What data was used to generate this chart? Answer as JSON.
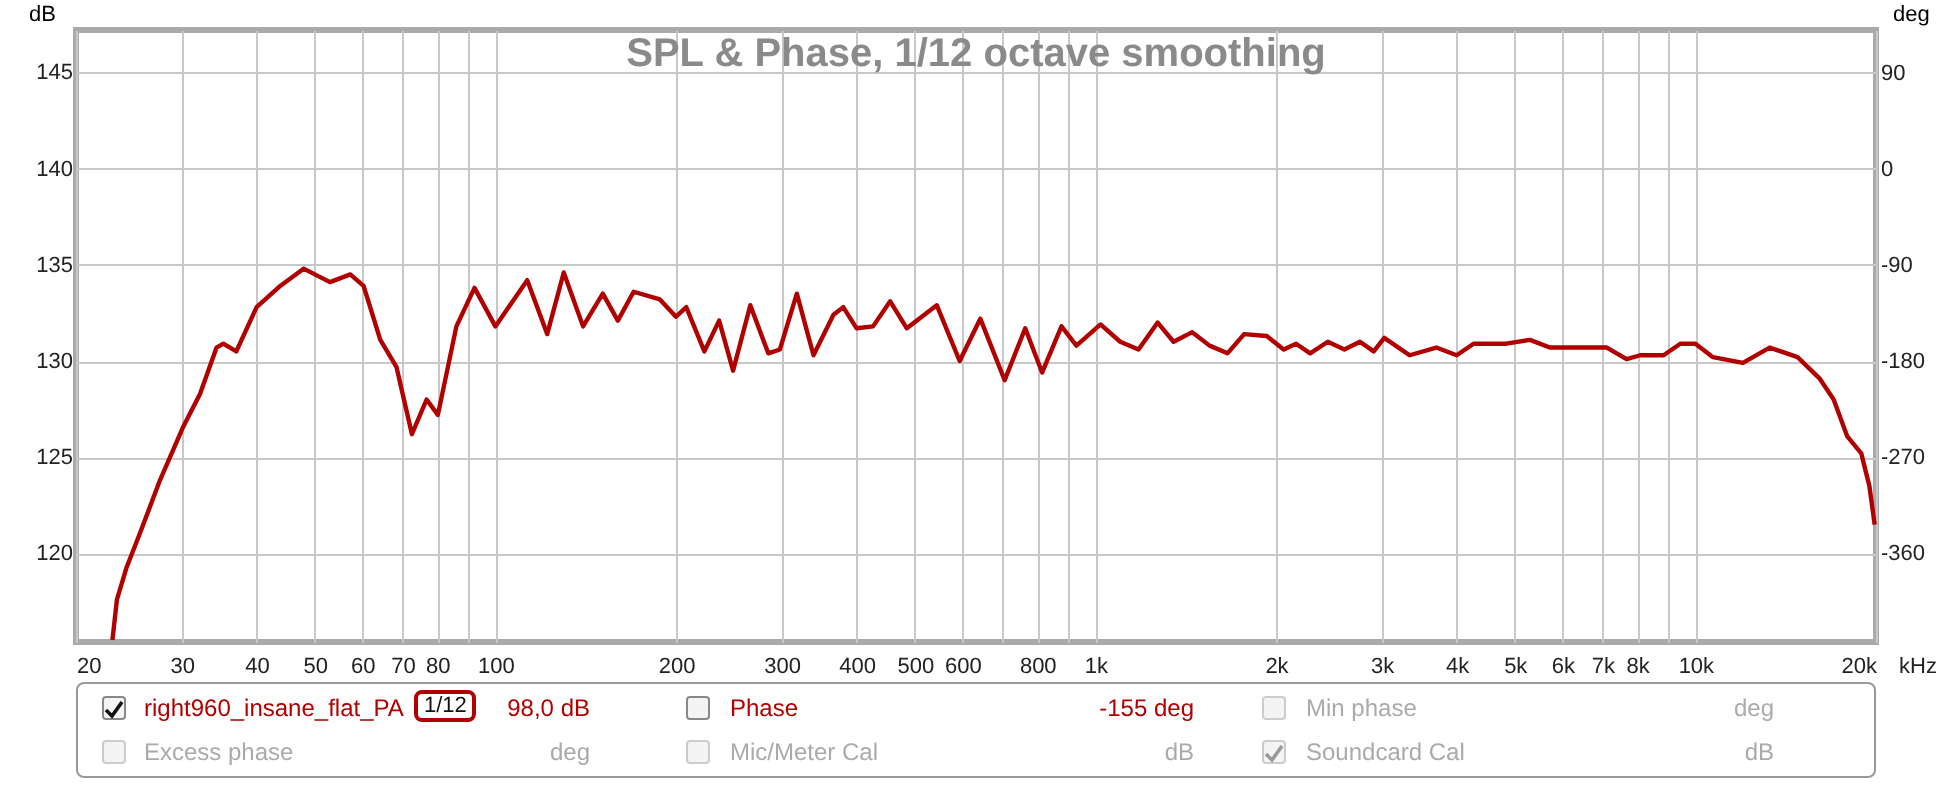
{
  "chart_data": {
    "type": "line",
    "title": "SPL & Phase, 1/12 octave smoothing",
    "ylabel": "dB",
    "y2label": "deg",
    "x": [
      23.0,
      23.4,
      24.3,
      25.6,
      27.6,
      30.2,
      32.2,
      34.3,
      35.2,
      37.0,
      40.0,
      43.8,
      47.9,
      53.0,
      57.3,
      60.3,
      64.3,
      68.4,
      72.6,
      76.8,
      80.2,
      86.1,
      92.3,
      100,
      113,
      122,
      130,
      140,
      151,
      160,
      170,
      188,
      200,
      208,
      223,
      236,
      249,
      266,
      285,
      298,
      318,
      339,
      366,
      380,
      400,
      426,
      455,
      485,
      544,
      594,
      643,
      706,
      764,
      815,
      878,
      930,
      1020,
      1100,
      1180,
      1270,
      1350,
      1450,
      1550,
      1660,
      1770,
      1930,
      2060,
      2160,
      2280,
      2440,
      2600,
      2760,
      2910,
      3030,
      3340,
      3700,
      4000,
      4270,
      4840,
      5300,
      5720,
      6590,
      7120,
      7680,
      8090,
      8850,
      9440,
      10000,
      10700,
      12000,
      13300,
      14800,
      16100,
      17000,
      17900,
      18900,
      19500,
      19900
    ],
    "series": [
      {
        "name": "right960_insane_flat_PA",
        "color": "#b00000",
        "values": [
          115.5,
          117.6,
          119.3,
          121.1,
          123.8,
          126.6,
          128.3,
          130.7,
          130.9,
          130.5,
          132.8,
          133.9,
          134.8,
          134.1,
          134.5,
          133.9,
          131.1,
          129.7,
          126.2,
          128.0,
          127.2,
          131.8,
          133.8,
          131.8,
          134.2,
          131.4,
          134.6,
          131.8,
          133.5,
          132.1,
          133.6,
          133.2,
          132.3,
          132.8,
          130.5,
          132.1,
          129.5,
          132.9,
          130.4,
          130.6,
          133.5,
          130.3,
          132.4,
          132.8,
          131.7,
          131.8,
          133.1,
          131.7,
          132.9,
          130.0,
          132.2,
          129.0,
          131.7,
          129.4,
          131.8,
          130.8,
          131.9,
          131.0,
          130.6,
          132.0,
          131.0,
          131.5,
          130.8,
          130.4,
          131.4,
          131.3,
          130.6,
          130.9,
          130.4,
          131.0,
          130.6,
          131.0,
          130.5,
          131.2,
          130.3,
          130.7,
          130.3,
          130.9,
          130.9,
          131.1,
          130.7,
          130.7,
          130.7,
          130.1,
          130.3,
          130.3,
          130.9,
          130.9,
          130.2,
          129.9,
          130.7,
          130.2,
          129.1,
          128.0,
          126.1,
          125.2,
          123.5,
          121.5
        ]
      }
    ],
    "log": "x",
    "xlim": [
      20,
      20000
    ],
    "xticks": [
      20,
      30,
      40,
      50,
      60,
      70,
      80,
      {
        "value": 90,
        "label": null
      },
      100,
      200,
      300,
      400,
      500,
      600,
      {
        "value": 700,
        "label": null
      },
      800,
      {
        "value": 900,
        "label": null
      },
      {
        "value": 1000,
        "label": "1k"
      },
      {
        "value": 2000,
        "label": "2k"
      },
      {
        "value": 3000,
        "label": "3k"
      },
      {
        "value": 4000,
        "label": "4k"
      },
      {
        "value": 5000,
        "label": "5k"
      },
      {
        "value": 6000,
        "label": "6k"
      },
      {
        "value": 7000,
        "label": "7k"
      },
      {
        "value": 8000,
        "label": "8k"
      },
      {
        "value": 9000,
        "label": null
      },
      {
        "value": 10000,
        "label": "10k"
      },
      {
        "value": 20000,
        "label": "20k"
      }
    ],
    "xlabel": "kHz",
    "ylim": [
      115.4,
      147.2
    ],
    "yticks": [
      120,
      125,
      130,
      135,
      140,
      145
    ],
    "y2lim": [
      -443,
      130
    ],
    "y2ticks": [
      90,
      0,
      -90,
      -180,
      -270,
      -360
    ],
    "grid": true,
    "legend": "bottom",
    "marker": "none",
    "line_style": "solid",
    "annotations": [
      "1/12",
      "98,0 dB",
      "Phase",
      "-155 deg",
      "Min phase",
      "deg",
      "Excess phase",
      "deg",
      "Mic/Meter Cal",
      "dB",
      "Soundcard Cal",
      "dB"
    ]
  }
}
